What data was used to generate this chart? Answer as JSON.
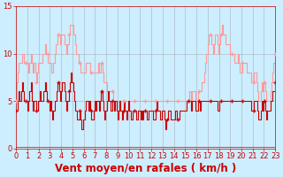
{
  "title": "",
  "xlabel": "Vent moyen/en rafales ( km/h )",
  "xlabel_color": "#cc0000",
  "xlabel_fontsize": 8.5,
  "bg_color": "#cceeff",
  "grid_color": "#999999",
  "line_color_avg": "#cc0000",
  "line_color_gust": "#ff9999",
  "marker_color": "#cc0000",
  "ylim": [
    0,
    15
  ],
  "xlim": [
    0,
    23
  ],
  "yticks": [
    0,
    5,
    10,
    15
  ],
  "xticks": [
    0,
    1,
    2,
    3,
    4,
    5,
    6,
    7,
    8,
    9,
    10,
    11,
    12,
    13,
    14,
    15,
    16,
    17,
    18,
    19,
    20,
    21,
    22,
    23
  ],
  "tick_color": "#cc0000",
  "tick_fontsize": 6,
  "avg_data": [
    4,
    4,
    5,
    6,
    5,
    6,
    7,
    6,
    5,
    5,
    5,
    4,
    5,
    6,
    7,
    5,
    4,
    5,
    5,
    4,
    4,
    5,
    6,
    5,
    5,
    5,
    6,
    7,
    6,
    5,
    5,
    4,
    5,
    4,
    3,
    4,
    5,
    5,
    6,
    7,
    6,
    5,
    6,
    7,
    7,
    6,
    5,
    4,
    5,
    6,
    7,
    8,
    7,
    6,
    5,
    4,
    4,
    3,
    3,
    4,
    3,
    2,
    3,
    3,
    4,
    5,
    5,
    4,
    5,
    4,
    3,
    3,
    4,
    5,
    4,
    5,
    5,
    4,
    5,
    6,
    5,
    4,
    3,
    4,
    5,
    6,
    5,
    5,
    4,
    5,
    5,
    4,
    5,
    4,
    3,
    4,
    5,
    4,
    3,
    4,
    5,
    4,
    3,
    4,
    5,
    4,
    3,
    3,
    4,
    4,
    4,
    3,
    3,
    4,
    4,
    3,
    4,
    3,
    4,
    4,
    4,
    3,
    3,
    4,
    4,
    4,
    4,
    3,
    3,
    4,
    5,
    4,
    4,
    3,
    3,
    4,
    4,
    3,
    2,
    3,
    3,
    4,
    4,
    3,
    3,
    3,
    3,
    4,
    4,
    3,
    3,
    4,
    4,
    4,
    4,
    4,
    4,
    4,
    5,
    5,
    5,
    5,
    4,
    5,
    5,
    5,
    4,
    4,
    5,
    5,
    4,
    5,
    5,
    5,
    5,
    5,
    5,
    5,
    5,
    5,
    5,
    5,
    5,
    5,
    5,
    5,
    4,
    4,
    5,
    5,
    5,
    5,
    5,
    5,
    5,
    5,
    5,
    5,
    5,
    5,
    5,
    5,
    5,
    5,
    5,
    5,
    5,
    5,
    5,
    5,
    5,
    5,
    5,
    5,
    5,
    5,
    5,
    4,
    4,
    4,
    5,
    5,
    5,
    4,
    3,
    3,
    4,
    5,
    4,
    5,
    4,
    3,
    4,
    4,
    4,
    5,
    5,
    6,
    6,
    7
  ],
  "gust_data": [
    5,
    7,
    8,
    9,
    9,
    9,
    10,
    10,
    9,
    9,
    9,
    9,
    8,
    9,
    10,
    9,
    8,
    9,
    8,
    7,
    8,
    9,
    9,
    9,
    9,
    10,
    10,
    11,
    10,
    10,
    9,
    9,
    9,
    8,
    8,
    9,
    10,
    11,
    11,
    12,
    12,
    11,
    12,
    12,
    12,
    11,
    11,
    10,
    11,
    12,
    13,
    13,
    13,
    12,
    12,
    11,
    10,
    10,
    9,
    9,
    8,
    8,
    8,
    8,
    8,
    9,
    9,
    9,
    9,
    8,
    8,
    8,
    8,
    8,
    8,
    8,
    9,
    8,
    8,
    9,
    8,
    7,
    7,
    7,
    6,
    6,
    6,
    6,
    6,
    6,
    5,
    5,
    5,
    5,
    5,
    5,
    5,
    5,
    5,
    5,
    5,
    5,
    5,
    5,
    5,
    5,
    5,
    5,
    5,
    5,
    5,
    5,
    5,
    5,
    5,
    5,
    5,
    5,
    5,
    5,
    5,
    5,
    5,
    5,
    5,
    5,
    5,
    5,
    5,
    5,
    5,
    5,
    5,
    5,
    5,
    5,
    5,
    5,
    5,
    5,
    5,
    5,
    5,
    5,
    5,
    5,
    5,
    5,
    5,
    5,
    5,
    5,
    5,
    5,
    5,
    5,
    5,
    5,
    5,
    5,
    6,
    6,
    5,
    6,
    6,
    6,
    5,
    5,
    6,
    6,
    6,
    6,
    7,
    7,
    8,
    9,
    10,
    11,
    12,
    12,
    12,
    11,
    10,
    11,
    12,
    12,
    11,
    10,
    11,
    12,
    13,
    12,
    12,
    12,
    11,
    11,
    11,
    11,
    10,
    10,
    10,
    10,
    9,
    9,
    9,
    10,
    9,
    8,
    8,
    9,
    9,
    9,
    9,
    8,
    8,
    8,
    8,
    7,
    7,
    7,
    8,
    8,
    7,
    6,
    5,
    5,
    6,
    7,
    6,
    7,
    6,
    5,
    5,
    5,
    5,
    6,
    7,
    8,
    9,
    10
  ]
}
